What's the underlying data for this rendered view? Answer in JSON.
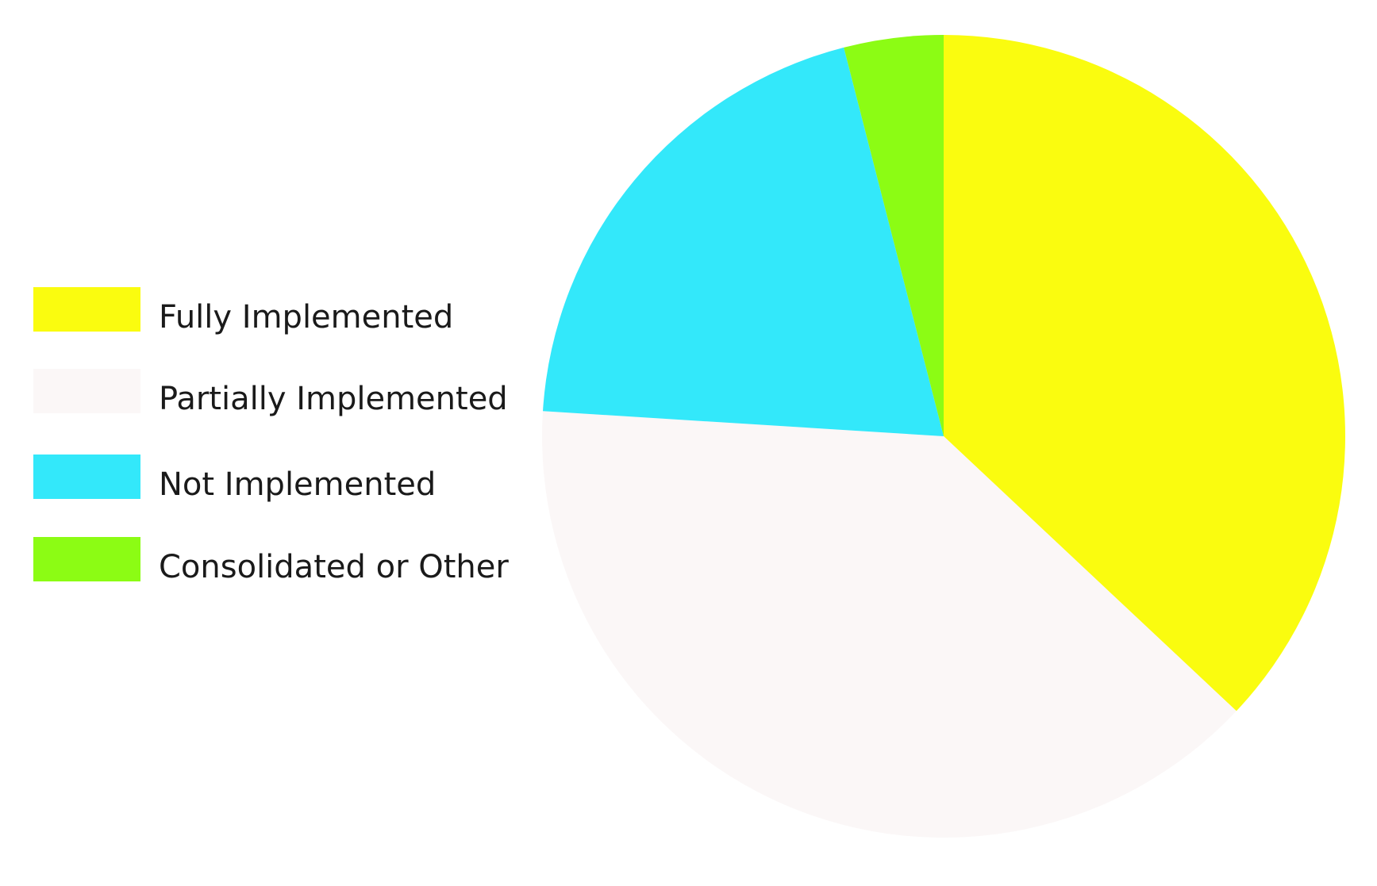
{
  "chart_data": {
    "type": "pie",
    "categories": [
      "Fully Implemented",
      "Partially Implemented",
      "Not Implemented",
      "Consolidated or Other"
    ],
    "values": [
      37,
      39,
      20,
      4
    ],
    "colors": [
      "#fafc0f",
      "#fbf7f7",
      "#33e8fa",
      "#8cfc14"
    ],
    "legend": "left"
  }
}
